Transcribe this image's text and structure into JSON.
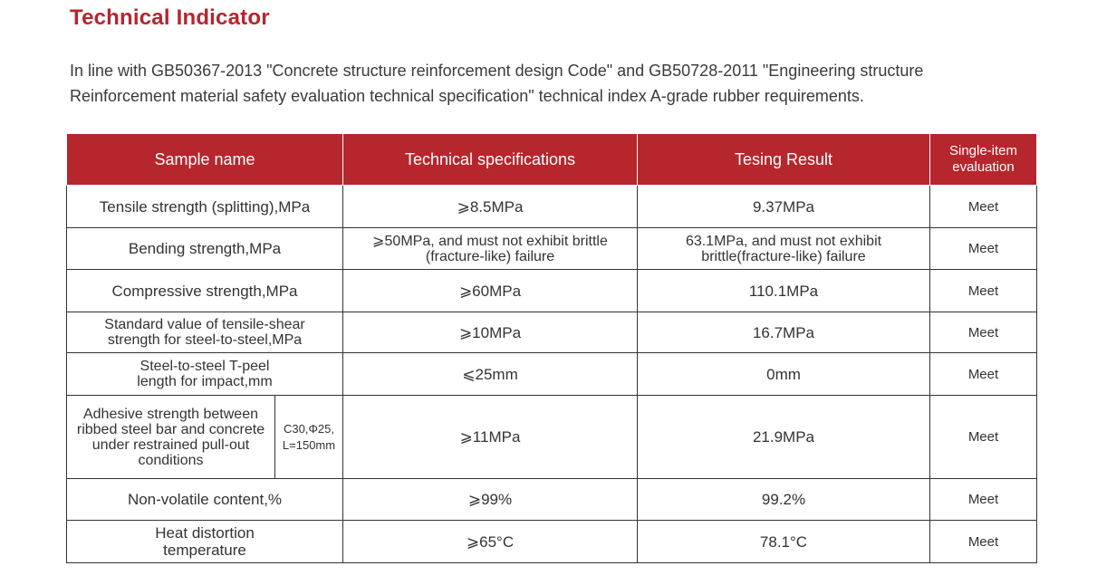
{
  "title": "Technical Indicator",
  "intro": "In line with GB50367-2013 \"Concrete structure reinforcement design Code\" and GB50728-2011 \"Engineering structure Reinforcement material safety evaluation technical specification\" technical index A-grade rubber requirements.",
  "headers": {
    "sample": "Sample name",
    "spec": "Technical specifications",
    "result": "Tesing Result",
    "eval_line1": "Single-item",
    "eval_line2": "evaluation"
  },
  "rows": [
    {
      "name": "Tensile strength (splitting),MPa",
      "spec": "⩾8.5MPa",
      "result": "9.37MPa",
      "eval": "Meet"
    },
    {
      "name": "Bending strength,MPa",
      "spec_line1": "⩾50MPa, and must not exhibit brittle",
      "spec_line2": "(fracture-like) failure",
      "result_line1": "63.1MPa, and must not exhibit",
      "result_line2": "brittle(fracture-like) failure",
      "eval": "Meet"
    },
    {
      "name": "Compressive strength,MPa",
      "spec": "⩾60MPa",
      "result": "110.1MPa",
      "eval": "Meet"
    },
    {
      "name_line1": "Standard value of tensile-shear",
      "name_line2": "strength for steel-to-steel,MPa",
      "spec": "⩾10MPa",
      "result": "16.7MPa",
      "eval": "Meet"
    },
    {
      "name_line1": "Steel-to-steel T-peel",
      "name_line2": "length for impact,mm",
      "spec": "⩽25mm",
      "result": "0mm",
      "eval": "Meet"
    },
    {
      "name_lines": [
        "Adhesive strength between",
        "ribbed steel bar and concrete",
        "under restrained pull-out",
        "conditions"
      ],
      "condition_line1": "C30,Φ25,",
      "condition_line2": "L=150mm",
      "spec": "⩾11MPa",
      "result": "21.9MPa",
      "eval": "Meet"
    },
    {
      "name": "Non-volatile content,%",
      "spec": "⩾99%",
      "result": "99.2%",
      "eval": "Meet"
    },
    {
      "name_line1": "Heat distortion",
      "name_line2": "temperature",
      "spec": "⩾65°C",
      "result": "78.1°C",
      "eval": "Meet"
    }
  ]
}
